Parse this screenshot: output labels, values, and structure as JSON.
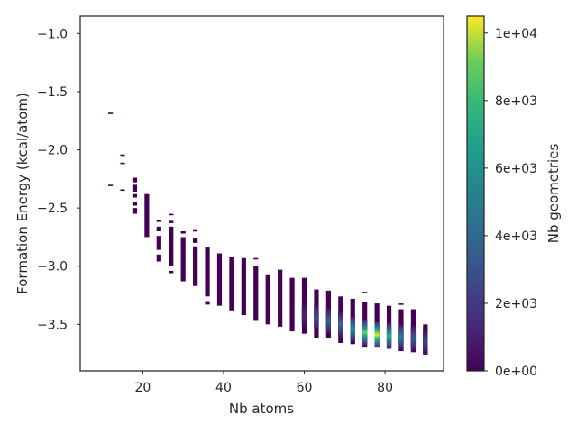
{
  "chart_data": {
    "type": "heatmap",
    "xlabel": "Nb atoms",
    "ylabel": "Formation Energy (kcal/atom)",
    "colorbar_label": "Nb geometries",
    "xlim": [
      4.5,
      94.5
    ],
    "ylim": [
      -3.9,
      -0.85
    ],
    "x_ticks": [
      20,
      40,
      60,
      80
    ],
    "x_tick_labels": [
      "20",
      "40",
      "60",
      "80"
    ],
    "y_ticks": [
      -1.0,
      -1.5,
      -2.0,
      -2.5,
      -3.0,
      -3.5
    ],
    "y_tick_labels": [
      "−1.0",
      "−1.5",
      "−2.0",
      "−2.5",
      "−3.0",
      "−3.5"
    ],
    "colorbar_range": [
      0,
      10500
    ],
    "colorbar_ticks": [
      0,
      2000,
      4000,
      6000,
      8000,
      10000
    ],
    "colorbar_tick_labels": [
      "0e+00",
      "2e+03",
      "4e+03",
      "6e+03",
      "8e+03",
      "1e+04"
    ],
    "colormap": "viridis",
    "grid": false,
    "columns": [
      {
        "x": 12,
        "segments": [
          [
            -1.68,
            -1.68
          ],
          [
            -2.3,
            -2.3
          ]
        ]
      },
      {
        "x": 15,
        "segments": [
          [
            -2.04,
            -2.04
          ],
          [
            -2.11,
            -2.11
          ],
          [
            -2.34,
            -2.34
          ]
        ]
      },
      {
        "x": 18,
        "segments": [
          [
            -2.24,
            -2.28
          ],
          [
            -2.3,
            -2.36
          ],
          [
            -2.38,
            -2.41
          ],
          [
            -2.45,
            -2.48
          ],
          [
            -2.5,
            -2.55
          ]
        ]
      },
      {
        "x": 21,
        "segments": [
          [
            -2.38,
            -2.75
          ]
        ]
      },
      {
        "x": 24,
        "segments": [
          [
            -2.6,
            -2.62
          ],
          [
            -2.66,
            -2.7
          ],
          [
            -2.74,
            -2.86
          ],
          [
            -2.9,
            -2.96
          ]
        ]
      },
      {
        "x": 27,
        "segments": [
          [
            -2.55,
            -2.55
          ],
          [
            -2.61,
            -2.63
          ],
          [
            -2.66,
            -3.0
          ],
          [
            -3.04,
            -3.06
          ]
        ]
      },
      {
        "x": 30,
        "segments": [
          [
            -2.7,
            -2.72
          ],
          [
            -2.75,
            -3.13
          ]
        ]
      },
      {
        "x": 33,
        "segments": [
          [
            -2.69,
            -2.7
          ],
          [
            -2.76,
            -2.8
          ],
          [
            -2.83,
            -3.17
          ]
        ]
      },
      {
        "x": 36,
        "segments": [
          [
            -2.84,
            -3.26
          ],
          [
            -3.3,
            -3.33
          ]
        ]
      },
      {
        "x": 39,
        "segments": [
          [
            -2.89,
            -3.34
          ]
        ]
      },
      {
        "x": 42,
        "segments": [
          [
            -2.92,
            -3.38
          ]
        ]
      },
      {
        "x": 45,
        "segments": [
          [
            -2.93,
            -3.42
          ]
        ]
      },
      {
        "x": 48,
        "segments": [
          [
            -2.93,
            -2.94
          ],
          [
            -3.0,
            -3.47
          ]
        ]
      },
      {
        "x": 51,
        "segments": [
          [
            -3.07,
            -3.5
          ]
        ]
      },
      {
        "x": 54,
        "segments": [
          [
            -3.03,
            -3.52
          ]
        ]
      },
      {
        "x": 57,
        "segments": [
          [
            -3.1,
            -3.56
          ]
        ]
      },
      {
        "x": 60,
        "segments": [
          [
            -3.1,
            -3.58
          ]
        ]
      },
      {
        "x": 63,
        "segments": [
          [
            -3.2,
            -3.62
          ]
        ]
      },
      {
        "x": 66,
        "segments": [
          [
            -3.21,
            -3.62
          ]
        ]
      },
      {
        "x": 69,
        "segments": [
          [
            -3.26,
            -3.66
          ]
        ]
      },
      {
        "x": 72,
        "segments": [
          [
            -3.28,
            -3.67
          ]
        ]
      },
      {
        "x": 75,
        "segments": [
          [
            -3.22,
            -3.23
          ],
          [
            -3.31,
            -3.7
          ]
        ]
      },
      {
        "x": 78,
        "segments": [
          [
            -3.32,
            -3.7
          ]
        ]
      },
      {
        "x": 81,
        "segments": [
          [
            -3.34,
            -3.71
          ]
        ]
      },
      {
        "x": 84,
        "segments": [
          [
            -3.32,
            -3.33
          ],
          [
            -3.37,
            -3.73
          ]
        ]
      },
      {
        "x": 87,
        "segments": [
          [
            -3.37,
            -3.74
          ]
        ]
      },
      {
        "x": 90,
        "segments": [
          [
            -3.5,
            -3.76
          ]
        ]
      }
    ],
    "hotspots": [
      {
        "x": 60,
        "y": -3.42,
        "count": 1000
      },
      {
        "x": 63,
        "y": -3.44,
        "count": 2500
      },
      {
        "x": 66,
        "y": -3.47,
        "count": 3200
      },
      {
        "x": 69,
        "y": -3.5,
        "count": 3500
      },
      {
        "x": 72,
        "y": -3.54,
        "count": 5000
      },
      {
        "x": 75,
        "y": -3.57,
        "count": 8000
      },
      {
        "x": 78,
        "y": -3.59,
        "count": 9800
      },
      {
        "x": 81,
        "y": -3.6,
        "count": 6500
      },
      {
        "x": 84,
        "y": -3.61,
        "count": 4500
      },
      {
        "x": 87,
        "y": -3.62,
        "count": 3000
      },
      {
        "x": 90,
        "y": -3.65,
        "count": 2000
      }
    ]
  }
}
